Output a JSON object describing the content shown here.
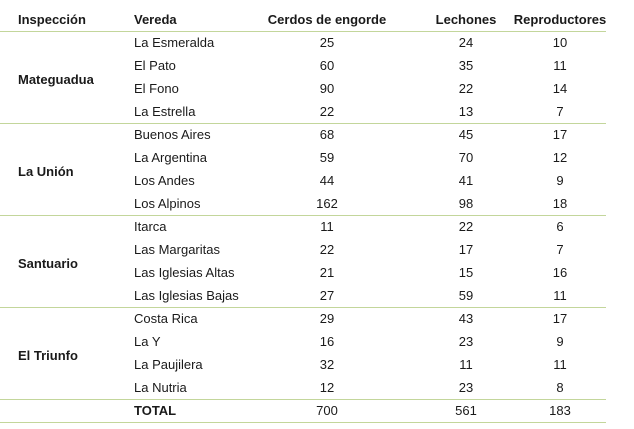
{
  "table": {
    "header": [
      "Inspección",
      "Vereda",
      "Cerdos de engorde",
      "Lechones",
      "Reproductores"
    ],
    "groups": [
      {
        "inspeccion": "Mateguadua",
        "rows": [
          [
            "La Esmeralda",
            25,
            24,
            10
          ],
          [
            "El Pato",
            60,
            35,
            11
          ],
          [
            "El Fono",
            90,
            22,
            14
          ],
          [
            "La Estrella",
            22,
            13,
            7
          ]
        ]
      },
      {
        "inspeccion": "La Unión",
        "rows": [
          [
            "Buenos Aires",
            68,
            45,
            17
          ],
          [
            "La Argentina",
            59,
            70,
            12
          ],
          [
            "Los Andes",
            44,
            41,
            9
          ],
          [
            "Los Alpinos",
            162,
            98,
            18
          ]
        ]
      },
      {
        "inspeccion": "Santuario",
        "rows": [
          [
            "Itarca",
            11,
            22,
            6
          ],
          [
            "Las Margaritas",
            22,
            17,
            7
          ],
          [
            "Las Iglesias Altas",
            21,
            15,
            16
          ],
          [
            "Las Iglesias Bajas",
            27,
            59,
            11
          ]
        ]
      },
      {
        "inspeccion": "El Triunfo",
        "rows": [
          [
            "Costa Rica",
            29,
            43,
            17
          ],
          [
            "La Y",
            16,
            23,
            9
          ],
          [
            "La Paujilera",
            32,
            11,
            11
          ],
          [
            "La Nutria",
            12,
            23,
            8
          ]
        ]
      }
    ],
    "total": {
      "label": "TOTAL",
      "values": [
        700,
        561,
        183
      ]
    }
  }
}
